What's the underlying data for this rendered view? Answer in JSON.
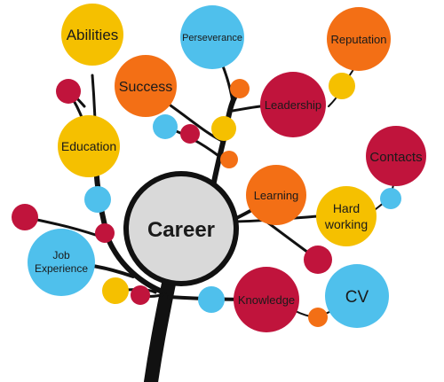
{
  "center": {
    "label": "Career"
  },
  "nodes": [
    {
      "key": "abilities",
      "label": "Abilities",
      "color": "#f5c000"
    },
    {
      "key": "perseverance",
      "label": "Perseverance",
      "color": "#4fc0ec"
    },
    {
      "key": "reputation",
      "label": "Reputation",
      "color": "#f36f15"
    },
    {
      "key": "success",
      "label": "Success",
      "color": "#f36f15"
    },
    {
      "key": "leadership",
      "label": "Leadership",
      "color": "#c0143c"
    },
    {
      "key": "education",
      "label": "Education",
      "color": "#f5c000"
    },
    {
      "key": "contacts",
      "label": "Contacts",
      "color": "#c0143c"
    },
    {
      "key": "learning",
      "label": "Learning",
      "color": "#f36f15"
    },
    {
      "key": "hardworking",
      "label": "Hard working",
      "line1": "Hard",
      "line2": "working",
      "color": "#f5c000"
    },
    {
      "key": "jobexperience",
      "label": "Job Experience",
      "line1": "Job",
      "line2": "Experience",
      "color": "#4fc0ec"
    },
    {
      "key": "knowledge",
      "label": "Knowledge",
      "color": "#c0143c"
    },
    {
      "key": "cv",
      "label": "CV",
      "color": "#4fc0ec"
    }
  ],
  "colors": {
    "center_fill": "#d9d9d9",
    "trunk": "#111111",
    "red": "#c0143c",
    "orange": "#f36f15",
    "yellow": "#f5c000",
    "blue": "#4fc0ec"
  }
}
